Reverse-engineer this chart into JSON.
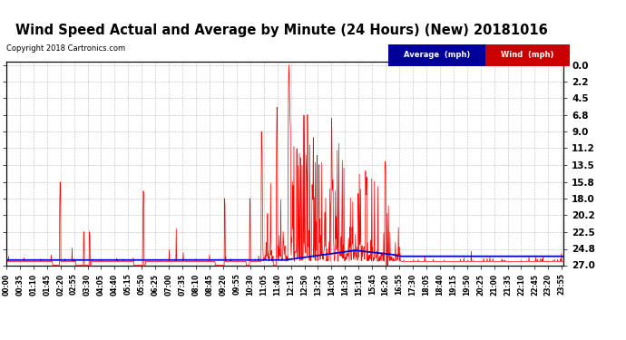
{
  "title": "Wind Speed Actual and Average by Minute (24 Hours) (New) 20181016",
  "copyright": "Copyright 2018 Cartronics.com",
  "ylabel_right": [
    "27.0",
    "24.8",
    "22.5",
    "20.2",
    "18.0",
    "15.8",
    "13.5",
    "11.2",
    "9.0",
    "6.8",
    "4.5",
    "2.2",
    "0.0"
  ],
  "yticks": [
    0.0,
    2.2,
    4.5,
    6.8,
    9.0,
    11.2,
    13.5,
    15.8,
    18.0,
    20.2,
    22.5,
    24.8,
    27.0
  ],
  "ylim": [
    0.0,
    27.5
  ],
  "wind_color": "#FF0000",
  "avg_color": "#0000CC",
  "background_color": "#FFFFFF",
  "grid_color": "#AAAAAA",
  "title_fontsize": 10.5,
  "legend_avg_bg": "#000099",
  "legend_wind_bg": "#CC0000",
  "total_minutes": 1440
}
